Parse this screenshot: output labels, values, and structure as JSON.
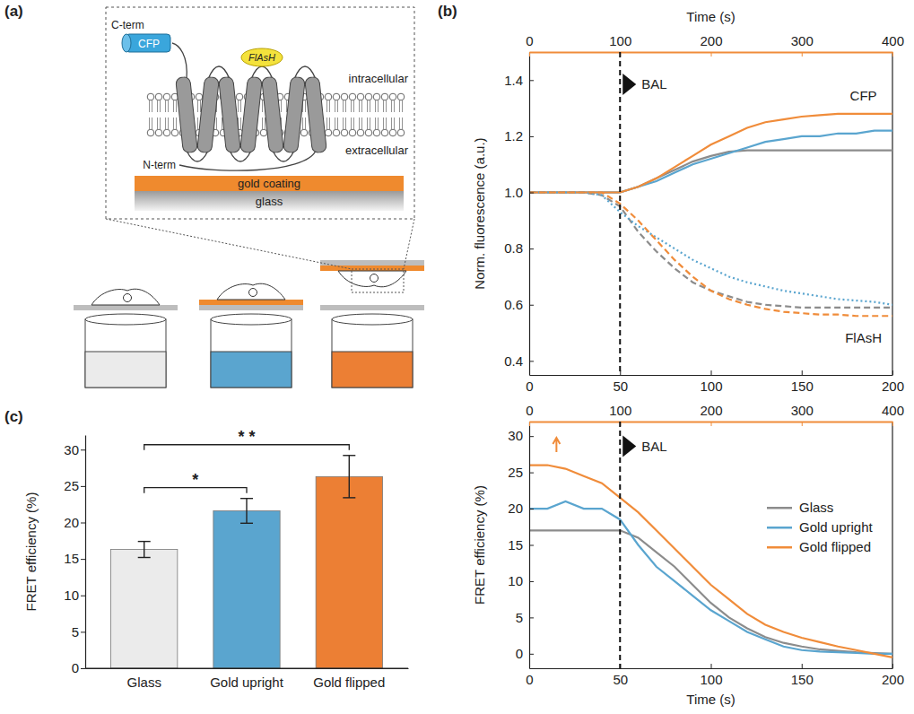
{
  "diagram": {
    "label": "(a)",
    "cterm": "C-term",
    "cfp": "CFP",
    "flash": "FlAsH",
    "intracellular": "intracellular",
    "extracellular": "extracellular",
    "nterm": "N-term",
    "gold": "gold coating",
    "glass": "glass"
  },
  "chart_data": [
    {
      "type": "line",
      "title": "(b)",
      "ylabel": "Norm. fluorescence (a.u.)",
      "x2label": "Time (s)",
      "x": [
        0,
        10,
        20,
        30,
        40,
        50,
        60,
        70,
        80,
        90,
        100,
        110,
        120,
        130,
        140,
        150,
        160,
        170,
        180,
        190,
        200
      ],
      "x2": [
        0,
        20,
        40,
        60,
        80,
        100,
        120,
        140,
        160,
        180,
        200,
        220,
        240,
        260,
        280,
        300,
        320,
        340,
        360,
        380,
        400
      ],
      "xlim": [
        0,
        200
      ],
      "xticks": [
        0,
        50,
        100,
        150,
        200
      ],
      "x2lim": [
        0,
        400
      ],
      "x2ticks": [
        0,
        100,
        200,
        300,
        400
      ],
      "ylim": [
        0.35,
        1.5
      ],
      "yticks": [
        0.4,
        0.6,
        0.8,
        {
          "value": 1,
          "label": "1.0"
        },
        1.2,
        1.4
      ],
      "annotations": [
        "CFP",
        "FlAsH"
      ],
      "events": [
        {
          "x": 50,
          "label": "BAL"
        }
      ],
      "series": [
        {
          "color": "#8c8c8c",
          "line_style": "solid",
          "values": [
            1.0,
            1.0,
            1.0,
            1.0,
            1.0,
            1.0,
            1.02,
            1.05,
            1.08,
            1.11,
            1.13,
            1.145,
            1.15,
            1.15,
            1.15,
            1.15,
            1.15,
            1.15,
            1.15,
            1.15,
            1.15
          ]
        },
        {
          "color": "#5aa5cf",
          "line_style": "solid",
          "values": [
            1.0,
            1.0,
            1.0,
            1.0,
            1.0,
            1.0,
            1.02,
            1.04,
            1.07,
            1.1,
            1.12,
            1.14,
            1.16,
            1.18,
            1.19,
            1.2,
            1.2,
            1.21,
            1.21,
            1.22,
            1.22
          ]
        },
        {
          "color": "#f08c3a",
          "line_style": "solid",
          "axis": "x2",
          "values": [
            1.0,
            1.0,
            1.0,
            1.0,
            1.0,
            1.0,
            1.02,
            1.05,
            1.09,
            1.13,
            1.17,
            1.2,
            1.23,
            1.25,
            1.26,
            1.27,
            1.275,
            1.28,
            1.28,
            1.28,
            1.28
          ]
        },
        {
          "color": "#8c8c8c",
          "line_style": "dashed",
          "values": [
            1.0,
            1.0,
            1.0,
            1.0,
            0.99,
            0.95,
            0.86,
            0.79,
            0.73,
            0.68,
            0.65,
            0.63,
            0.61,
            0.6,
            0.595,
            0.59,
            0.59,
            0.59,
            0.59,
            0.59,
            0.59
          ]
        },
        {
          "color": "#5aa5cf",
          "line_style": "dotted",
          "values": [
            1.0,
            1.0,
            1.0,
            1.0,
            0.99,
            0.93,
            0.88,
            0.84,
            0.8,
            0.76,
            0.73,
            0.7,
            0.68,
            0.665,
            0.65,
            0.64,
            0.63,
            0.62,
            0.615,
            0.61,
            0.6
          ]
        },
        {
          "color": "#f08c3a",
          "line_style": "dashed",
          "axis": "x2",
          "values": [
            1.0,
            1.0,
            1.0,
            1.0,
            1.0,
            0.96,
            0.9,
            0.83,
            0.76,
            0.7,
            0.65,
            0.62,
            0.6,
            0.585,
            0.575,
            0.57,
            0.565,
            0.565,
            0.56,
            0.56,
            0.56
          ]
        }
      ]
    },
    {
      "type": "line",
      "ylabel": "FRET efficiency (%)",
      "xlabel": "Time (s)",
      "legend": "right",
      "x": [
        0,
        10,
        20,
        30,
        40,
        50,
        60,
        70,
        80,
        90,
        100,
        110,
        120,
        130,
        140,
        150,
        160,
        170,
        180,
        190,
        200
      ],
      "x2": [
        0,
        20,
        40,
        60,
        80,
        100,
        120,
        140,
        160,
        180,
        200,
        220,
        240,
        260,
        280,
        300,
        320,
        340,
        360,
        380,
        400
      ],
      "xlim": [
        0,
        200
      ],
      "xticks": [
        0,
        50,
        100,
        150,
        200
      ],
      "x2lim": [
        0,
        400
      ],
      "x2ticks": [
        0,
        100,
        200,
        300,
        400
      ],
      "ylim": [
        -2,
        32
      ],
      "yticks": [
        0,
        5,
        10,
        15,
        20,
        25,
        30
      ],
      "events": [
        {
          "x": 50,
          "label": "BAL"
        }
      ],
      "series": [
        {
          "name": "Glass",
          "color": "#8c8c8c",
          "line_style": "solid",
          "values": [
            17,
            17,
            17,
            17,
            17,
            17,
            16,
            14,
            12,
            9.5,
            7,
            5,
            3.5,
            2.3,
            1.5,
            1,
            0.6,
            0.4,
            0.2,
            0.1,
            0
          ]
        },
        {
          "name": "Gold upright",
          "color": "#5aa5cf",
          "line_style": "solid",
          "values": [
            20,
            20,
            21,
            20,
            20,
            18.5,
            15,
            12,
            10,
            8,
            6,
            4.5,
            3,
            2,
            1,
            0.5,
            0.3,
            0.2,
            0.1,
            0,
            0
          ]
        },
        {
          "name": "Gold flipped",
          "color": "#f08c3a",
          "line_style": "solid",
          "axis": "x2",
          "values": [
            26,
            26,
            25.5,
            24.5,
            23.5,
            21.5,
            19.5,
            17,
            14.5,
            12,
            9.5,
            7.5,
            5.5,
            4,
            3,
            2.2,
            1.6,
            1,
            0.5,
            0,
            -0.5
          ]
        }
      ]
    },
    {
      "type": "bar",
      "title": "(c)",
      "ylabel": "FRET efficiency (%)",
      "categories": [
        "Glass",
        "Gold upright",
        "Gold flipped"
      ],
      "values": [
        16.3,
        21.6,
        26.3
      ],
      "errors": [
        1.1,
        1.7,
        2.9
      ],
      "colors": [
        "#ebebeb",
        "#5aa5cf",
        "#ec7f34"
      ],
      "ylim": [
        0,
        32
      ],
      "yticks": [
        0,
        5,
        10,
        15,
        20,
        25,
        30
      ],
      "significance": [
        {
          "from": 0,
          "to": 1,
          "label": "*"
        },
        {
          "from": 0,
          "to": 2,
          "label": "* *"
        }
      ]
    }
  ]
}
